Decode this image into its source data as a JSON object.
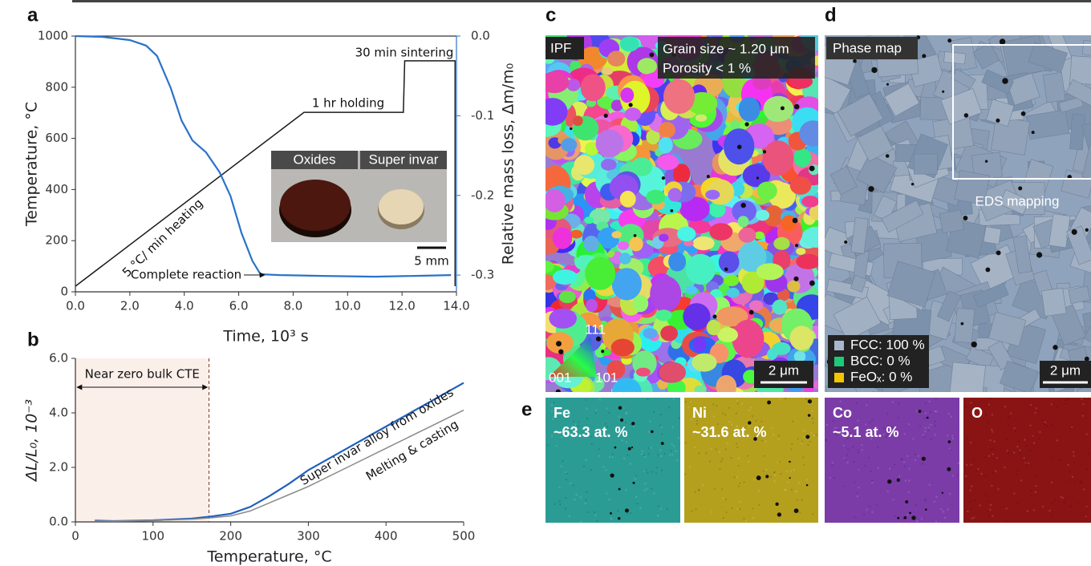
{
  "chart_data": [
    {
      "type": "line",
      "label": "a",
      "xlabel": "Time, 10³ s",
      "ylabel": "Temperature, °C",
      "y2label": "Relative mass loss, Δm/m₀",
      "xlim": [
        0,
        14
      ],
      "xticks": [
        {
          "value": 0,
          "label": "0.0"
        },
        {
          "value": 2,
          "label": "2.0"
        },
        {
          "value": 4,
          "label": "4.0"
        },
        {
          "value": 6,
          "label": "6.0"
        },
        {
          "value": 8,
          "label": "8.0"
        },
        {
          "value": 10,
          "label": "10.0"
        },
        {
          "value": 12,
          "label": "12.0"
        },
        {
          "value": 14,
          "label": "14.0"
        }
      ],
      "ylim": [
        0,
        1000
      ],
      "yticks": [
        0,
        200,
        400,
        600,
        800,
        1000
      ],
      "y2lim": [
        -0.321,
        0
      ],
      "y2ticks": [
        {
          "value": 0,
          "label": "0.0"
        },
        -0.1,
        -0.2,
        -0.3
      ],
      "y2color": "#2a72c9",
      "series": [
        {
          "color": "#1a1a1a",
          "x": [
            0,
            8.4,
            12.05,
            12.1,
            13.95,
            13.95
          ],
          "values": [
            22,
            702,
            702,
            903,
            903,
            22
          ]
        },
        {
          "color": "#2a72c9",
          "axis": "y2",
          "x": [
            0,
            1,
            2,
            2.6,
            3.0,
            3.5,
            3.9,
            4.3,
            4.8,
            5.3,
            5.7,
            6.1,
            6.5,
            6.8,
            7.5,
            9,
            11,
            12.5,
            13.8
          ],
          "values": [
            0,
            -0.001,
            -0.005,
            -0.012,
            -0.025,
            -0.065,
            -0.106,
            -0.131,
            -0.146,
            -0.171,
            -0.201,
            -0.247,
            -0.282,
            -0.299,
            -0.3,
            -0.301,
            -0.302,
            -0.301,
            -0.3
          ]
        }
      ],
      "annotations": [
        "30 min sintering",
        "1 hr holding",
        "5 °C/ min heating",
        "Complete reaction"
      ],
      "inset": {
        "labels": [
          "Oxides",
          "Super invar"
        ],
        "scale_bar": "5 mm"
      }
    },
    {
      "type": "line",
      "label": "b",
      "xlabel": "Temperature, °C",
      "ylabel": "ΔL/L₀, 10⁻³",
      "xlim": [
        0,
        500
      ],
      "xticks": [
        0,
        100,
        200,
        300,
        400,
        500
      ],
      "ylim": [
        0,
        6
      ],
      "yticks": [
        {
          "value": 0,
          "label": "0.0"
        },
        {
          "value": 2,
          "label": "2.0"
        },
        {
          "value": 4,
          "label": "4.0"
        },
        {
          "value": 6,
          "label": "6.0"
        }
      ],
      "x": [
        25,
        50,
        100,
        150,
        175,
        200,
        225,
        250,
        275,
        300,
        350,
        400,
        450,
        500
      ],
      "series": [
        {
          "name": "Super invar alloy from oxides",
          "color": "#1f5fbf",
          "values": [
            0.05,
            0.03,
            0.06,
            0.12,
            0.2,
            0.3,
            0.55,
            0.95,
            1.4,
            1.9,
            2.7,
            3.5,
            4.3,
            5.1
          ]
        },
        {
          "name": "Melting & casting",
          "color": "#8a8a8a",
          "values": [
            0.03,
            0.03,
            0.05,
            0.1,
            0.15,
            0.22,
            0.4,
            0.7,
            1.0,
            1.3,
            2.0,
            2.7,
            3.4,
            4.1
          ]
        }
      ],
      "region": {
        "label": "Near zero bulk CTE",
        "xlim": [
          0,
          172
        ],
        "color": "#fbefea"
      }
    }
  ],
  "panels": {
    "c": {
      "label": "c",
      "texts": [
        "IPF",
        "Grain size ~ 1.20 μm",
        "Porosity < 1 %"
      ],
      "key": [
        "111",
        "001",
        "101"
      ],
      "scale_bar": "2 μm"
    },
    "d": {
      "label": "d",
      "title": "Phase map",
      "box": "EDS mapping",
      "legend": [
        {
          "name": "FCC: 100 %",
          "color": "#a8b8cc"
        },
        {
          "name": "BCC: 0 %",
          "color": "#1ec97a"
        },
        {
          "name": "FeOₓ: 0 %",
          "color": "#f5c400"
        }
      ],
      "scale_bar": "2 μm"
    },
    "e": {
      "label": "e",
      "maps": [
        {
          "element": "Fe",
          "content": "~63.3 at. %",
          "color": "#2b9c94"
        },
        {
          "element": "Ni",
          "content": "~31.6 at. %",
          "color": "#b5a01e"
        },
        {
          "element": "Co",
          "content": "~5.1 at. %",
          "color": "#7b3ca8"
        },
        {
          "element": "O",
          "color": "#8a1414"
        }
      ]
    }
  }
}
